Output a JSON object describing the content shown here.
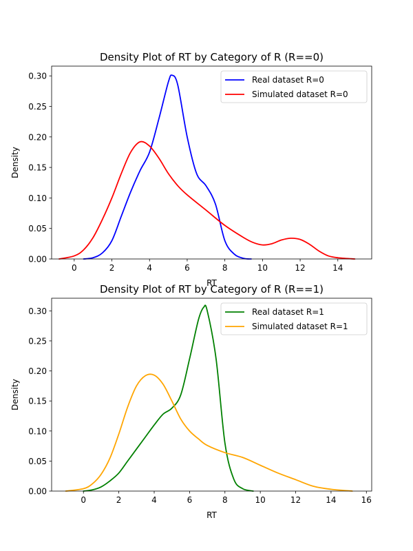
{
  "chart_data": [
    {
      "type": "line",
      "title": "Density Plot of RT by Category of R (R==0)",
      "xlabel": "RT",
      "ylabel": "Density",
      "xlim": [
        -1.2,
        15.8
      ],
      "ylim": [
        0,
        0.316
      ],
      "xticks": [
        0,
        2,
        4,
        6,
        8,
        10,
        12,
        14
      ],
      "yticks": [
        0.0,
        0.05,
        0.1,
        0.15,
        0.2,
        0.25,
        0.3
      ],
      "ytick_labels": [
        "0.00",
        "0.05",
        "0.10",
        "0.15",
        "0.20",
        "0.25",
        "0.30"
      ],
      "grid": false,
      "legend_position": "top-right",
      "series": [
        {
          "name": "Real dataset R=0",
          "color": "#0000ff",
          "x": [
            0.5,
            1.0,
            1.5,
            2.0,
            2.5,
            3.0,
            3.5,
            4.0,
            4.5,
            5.0,
            5.2,
            5.5,
            6.0,
            6.5,
            7.0,
            7.5,
            8.0,
            8.5,
            9.0,
            9.4
          ],
          "y": [
            0.0,
            0.002,
            0.01,
            0.03,
            0.07,
            0.11,
            0.145,
            0.175,
            0.23,
            0.29,
            0.301,
            0.285,
            0.2,
            0.14,
            0.12,
            0.09,
            0.03,
            0.008,
            0.001,
            0.0
          ]
        },
        {
          "name": "Simulated dataset R=0",
          "color": "#ff0000",
          "x": [
            -0.8,
            0.0,
            0.5,
            1.0,
            1.5,
            2.0,
            2.5,
            3.0,
            3.5,
            4.0,
            4.5,
            5.0,
            5.5,
            6.0,
            7.0,
            8.0,
            9.0,
            9.5,
            10.0,
            10.5,
            11.0,
            11.5,
            12.0,
            12.5,
            13.0,
            13.5,
            14.0,
            14.9
          ],
          "y": [
            0.0,
            0.005,
            0.015,
            0.035,
            0.065,
            0.1,
            0.14,
            0.175,
            0.192,
            0.185,
            0.165,
            0.14,
            0.12,
            0.105,
            0.08,
            0.055,
            0.035,
            0.027,
            0.023,
            0.025,
            0.031,
            0.034,
            0.032,
            0.024,
            0.013,
            0.005,
            0.002,
            0.0
          ]
        }
      ]
    },
    {
      "type": "line",
      "title": "Density Plot of RT by Category of R (R==1)",
      "xlabel": "RT",
      "ylabel": "Density",
      "xlim": [
        -1.8,
        16.3
      ],
      "ylim": [
        0,
        0.321
      ],
      "xticks": [
        0,
        2,
        4,
        6,
        8,
        10,
        12,
        14,
        16
      ],
      "yticks": [
        0.0,
        0.05,
        0.1,
        0.15,
        0.2,
        0.25,
        0.3
      ],
      "ytick_labels": [
        "0.00",
        "0.05",
        "0.10",
        "0.15",
        "0.20",
        "0.25",
        "0.30"
      ],
      "grid": false,
      "legend_position": "top-right",
      "series": [
        {
          "name": "Real dataset R=1",
          "color": "#008000",
          "x": [
            0.0,
            0.5,
            1.0,
            1.5,
            2.0,
            2.5,
            3.0,
            3.5,
            4.0,
            4.5,
            5.0,
            5.5,
            6.0,
            6.5,
            6.8,
            7.0,
            7.5,
            8.0,
            8.5,
            9.0,
            9.6
          ],
          "y": [
            0.0,
            0.002,
            0.007,
            0.017,
            0.03,
            0.05,
            0.07,
            0.09,
            0.11,
            0.128,
            0.138,
            0.16,
            0.22,
            0.285,
            0.306,
            0.3,
            0.22,
            0.08,
            0.02,
            0.004,
            0.0
          ]
        },
        {
          "name": "Simulated dataset R=1",
          "color": "#ffa500",
          "x": [
            -1.0,
            0.0,
            0.5,
            1.0,
            1.5,
            2.0,
            2.5,
            3.0,
            3.5,
            4.0,
            4.5,
            5.0,
            5.5,
            6.0,
            6.5,
            7.0,
            8.0,
            9.0,
            10.0,
            11.0,
            12.0,
            13.0,
            14.0,
            15.2
          ],
          "y": [
            0.0,
            0.004,
            0.012,
            0.028,
            0.055,
            0.095,
            0.14,
            0.175,
            0.192,
            0.193,
            0.178,
            0.15,
            0.12,
            0.1,
            0.087,
            0.076,
            0.064,
            0.056,
            0.043,
            0.03,
            0.019,
            0.008,
            0.003,
            0.0
          ]
        }
      ]
    }
  ]
}
